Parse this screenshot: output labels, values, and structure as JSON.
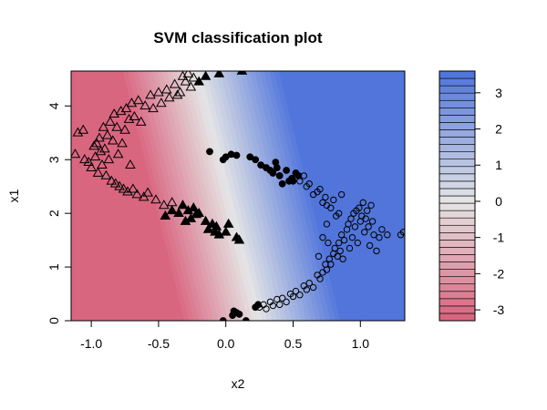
{
  "chart_data": {
    "type": "scatter",
    "title": "SVM classification plot",
    "xlabel": "x2",
    "ylabel": "x1",
    "xlim": [
      -1.15,
      1.33
    ],
    "ylim": [
      0,
      4.65
    ],
    "x_ticks": [
      -1.0,
      -0.5,
      0.0,
      0.5,
      1.0
    ],
    "x_tick_labels": [
      "-1.0",
      "-0.5",
      "0.0",
      "0.5",
      "1.0"
    ],
    "y_ticks": [
      0,
      1,
      2,
      3,
      4
    ],
    "y_tick_labels": [
      "0",
      "1",
      "2",
      "3",
      "4"
    ],
    "decision_value_range": [
      -3.3,
      3.6
    ],
    "colorbar": {
      "range": [
        -3.3,
        3.6
      ],
      "ticks": [
        3,
        2,
        1,
        0,
        -1,
        -2,
        -3
      ],
      "tick_labels": [
        "3",
        "2",
        "1",
        "0",
        "-1",
        "-2",
        "-3"
      ],
      "low_color": "#d9627c",
      "mid_color": "#e5e5e5",
      "high_color": "#4d72db"
    },
    "series": [
      {
        "name": "class -1 (triangles)",
        "marker": "triangle",
        "points": [
          [
            -1.12,
            3.1
          ],
          [
            -1.1,
            3.5
          ],
          [
            -1.06,
            3.55
          ],
          [
            -1.05,
            3.0
          ],
          [
            -1.02,
            2.95
          ],
          [
            -1.0,
            2.85
          ],
          [
            -0.98,
            3.25
          ],
          [
            -0.97,
            3.05
          ],
          [
            -0.96,
            3.3
          ],
          [
            -0.95,
            2.75
          ],
          [
            -0.94,
            3.4
          ],
          [
            -0.93,
            3.15
          ],
          [
            -0.92,
            2.9
          ],
          [
            -0.91,
            3.6
          ],
          [
            -0.9,
            3.2
          ],
          [
            -0.89,
            2.7
          ],
          [
            -0.88,
            3.45
          ],
          [
            -0.87,
            3.0
          ],
          [
            -0.86,
            3.7
          ],
          [
            -0.85,
            2.6
          ],
          [
            -0.84,
            3.35
          ],
          [
            -0.83,
            3.85
          ],
          [
            -0.82,
            2.55
          ],
          [
            -0.81,
            3.6
          ],
          [
            -0.8,
            3.1
          ],
          [
            -0.79,
            2.5
          ],
          [
            -0.78,
            3.9
          ],
          [
            -0.77,
            3.3
          ],
          [
            -0.76,
            2.45
          ],
          [
            -0.75,
            3.55
          ],
          [
            -0.74,
            3.95
          ],
          [
            -0.73,
            2.4
          ],
          [
            -0.72,
            3.75
          ],
          [
            -0.71,
            2.9
          ],
          [
            -0.7,
            4.05
          ],
          [
            -0.69,
            2.45
          ],
          [
            -0.68,
            3.8
          ],
          [
            -0.66,
            2.35
          ],
          [
            -0.65,
            4.1
          ],
          [
            -0.63,
            3.7
          ],
          [
            -0.61,
            2.3
          ],
          [
            -0.6,
            4.0
          ],
          [
            -0.58,
            2.38
          ],
          [
            -0.56,
            4.2
          ],
          [
            -0.54,
            3.95
          ],
          [
            -0.52,
            2.25
          ],
          [
            -0.5,
            4.25
          ],
          [
            -0.48,
            4.05
          ],
          [
            -0.46,
            2.15
          ],
          [
            -0.44,
            4.3
          ],
          [
            -0.42,
            4.15
          ],
          [
            -0.4,
            2.2
          ],
          [
            -0.38,
            4.4
          ],
          [
            -0.36,
            4.2
          ],
          [
            -0.34,
            4.25
          ],
          [
            -0.32,
            4.55
          ],
          [
            -0.3,
            4.45
          ],
          [
            -0.28,
            4.6
          ],
          [
            -0.26,
            4.35
          ],
          [
            -0.24,
            4.52
          ]
        ]
      },
      {
        "name": "class -1 (support vectors)",
        "marker": "filled-triangle",
        "points": [
          [
            -0.45,
            1.95
          ],
          [
            -0.4,
            2.05
          ],
          [
            -0.35,
            2.0
          ],
          [
            -0.32,
            2.15
          ],
          [
            -0.3,
            1.85
          ],
          [
            -0.28,
            2.05
          ],
          [
            -0.26,
            1.9
          ],
          [
            -0.24,
            2.1
          ],
          [
            -0.22,
            1.98
          ],
          [
            -0.2,
            2.0
          ],
          [
            -0.15,
            1.85
          ],
          [
            -0.13,
            1.7
          ],
          [
            -0.1,
            1.8
          ],
          [
            -0.08,
            1.65
          ],
          [
            -0.07,
            1.75
          ],
          [
            -0.05,
            1.6
          ],
          [
            0.0,
            1.65
          ],
          [
            0.02,
            1.8
          ],
          [
            0.08,
            1.55
          ],
          [
            0.1,
            1.5
          ],
          [
            -0.2,
            4.45
          ],
          [
            -0.15,
            4.55
          ],
          [
            -0.05,
            4.6
          ],
          [
            0.12,
            4.65
          ]
        ]
      },
      {
        "name": "class 1 (circles)",
        "marker": "circle",
        "points": [
          [
            0.25,
            0.25
          ],
          [
            0.28,
            0.3
          ],
          [
            0.3,
            0.22
          ],
          [
            0.33,
            0.35
          ],
          [
            0.35,
            0.28
          ],
          [
            0.38,
            0.4
          ],
          [
            0.4,
            0.3
          ],
          [
            0.42,
            0.42
          ],
          [
            0.45,
            0.35
          ],
          [
            0.48,
            0.5
          ],
          [
            0.5,
            0.45
          ],
          [
            0.52,
            0.55
          ],
          [
            0.55,
            0.48
          ],
          [
            0.58,
            0.65
          ],
          [
            0.6,
            0.58
          ],
          [
            0.62,
            0.7
          ],
          [
            0.65,
            0.62
          ],
          [
            0.68,
            0.85
          ],
          [
            0.7,
            0.78
          ],
          [
            0.72,
            0.9
          ],
          [
            0.74,
            1.05
          ],
          [
            0.75,
            0.95
          ],
          [
            0.77,
            1.15
          ],
          [
            0.78,
            1.05
          ],
          [
            0.8,
            1.25
          ],
          [
            0.81,
            1.35
          ],
          [
            0.83,
            1.2
          ],
          [
            0.84,
            1.45
          ],
          [
            0.85,
            1.3
          ],
          [
            0.86,
            1.6
          ],
          [
            0.87,
            1.15
          ],
          [
            0.88,
            1.5
          ],
          [
            0.9,
            1.7
          ],
          [
            0.91,
            1.8
          ],
          [
            0.92,
            1.35
          ],
          [
            0.93,
            1.9
          ],
          [
            0.94,
            1.55
          ],
          [
            0.95,
            2.0
          ],
          [
            0.96,
            1.75
          ],
          [
            0.97,
            2.05
          ],
          [
            0.98,
            1.45
          ],
          [
            0.99,
            2.1
          ],
          [
            1.0,
            1.85
          ],
          [
            1.01,
            1.95
          ],
          [
            1.02,
            2.2
          ],
          [
            1.03,
            1.65
          ],
          [
            1.04,
            1.9
          ],
          [
            1.05,
            2.05
          ],
          [
            1.06,
            1.75
          ],
          [
            1.07,
            1.4
          ],
          [
            1.08,
            2.15
          ],
          [
            1.09,
            1.85
          ],
          [
            1.1,
            1.6
          ],
          [
            1.12,
            1.3
          ],
          [
            1.14,
            1.55
          ],
          [
            1.16,
            1.7
          ],
          [
            1.2,
            1.6
          ],
          [
            0.55,
            2.6
          ],
          [
            0.58,
            2.7
          ],
          [
            0.6,
            2.5
          ],
          [
            0.62,
            2.55
          ],
          [
            0.65,
            2.35
          ],
          [
            0.68,
            2.4
          ],
          [
            0.7,
            2.45
          ],
          [
            0.72,
            2.2
          ],
          [
            0.74,
            2.3
          ],
          [
            0.75,
            2.15
          ],
          [
            0.78,
            2.1
          ],
          [
            0.8,
            2.25
          ],
          [
            0.82,
            1.95
          ],
          [
            0.84,
            2.0
          ],
          [
            0.86,
            2.35
          ],
          [
            0.75,
            1.8
          ],
          [
            0.76,
            1.45
          ],
          [
            0.72,
            1.55
          ],
          [
            0.69,
            1.2
          ],
          [
            1.3,
            1.6
          ],
          [
            1.32,
            1.65
          ]
        ]
      },
      {
        "name": "class 1 (support vectors)",
        "marker": "filled-circle",
        "points": [
          [
            -0.12,
            3.15
          ],
          [
            -0.02,
            3.0
          ],
          [
            0.0,
            3.05
          ],
          [
            0.04,
            3.1
          ],
          [
            0.08,
            3.08
          ],
          [
            0.18,
            3.05
          ],
          [
            0.22,
            3.0
          ],
          [
            0.26,
            2.9
          ],
          [
            0.3,
            2.85
          ],
          [
            0.33,
            2.8
          ],
          [
            0.35,
            2.75
          ],
          [
            0.37,
            2.95
          ],
          [
            0.38,
            2.85
          ],
          [
            0.4,
            2.7
          ],
          [
            0.42,
            2.55
          ],
          [
            0.45,
            2.8
          ],
          [
            0.47,
            2.6
          ],
          [
            0.49,
            2.65
          ],
          [
            0.5,
            2.6
          ],
          [
            0.52,
            2.75
          ],
          [
            0.54,
            2.7
          ],
          [
            -0.02,
            0.0
          ],
          [
            0.05,
            0.1
          ],
          [
            0.06,
            0.18
          ],
          [
            0.08,
            0.15
          ],
          [
            0.1,
            0.12
          ],
          [
            0.15,
            0.0
          ],
          [
            0.22,
            0.25
          ],
          [
            0.24,
            0.3
          ]
        ]
      }
    ]
  }
}
